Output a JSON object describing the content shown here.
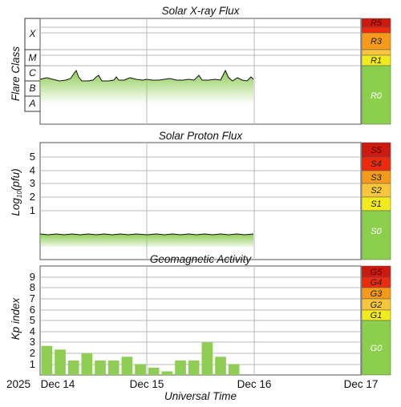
{
  "x_start_year": "2025",
  "x_axis_label": "Universal Time",
  "x_ticks": [
    "Dec 14",
    "Dec 15",
    "Dec 16",
    "Dec 17"
  ],
  "colors": {
    "green_bar": "#8fcd55",
    "green_light": "#d8efbf",
    "grid": "#b8b8b8",
    "scale_green": "#8ccf4d",
    "scale_yellow": "#f2ec1f",
    "scale_orange1": "#f8c63a",
    "scale_orange2": "#f59a1a",
    "scale_red1": "#ee2a0e",
    "scale_red2": "#cc1a10"
  },
  "xray": {
    "title": "Solar X-ray Flux",
    "ylabel": "Flare Class",
    "classes": [
      "X",
      "M",
      "C",
      "B",
      "A"
    ],
    "scale": [
      "R5",
      "R3",
      "R1",
      "R0"
    ]
  },
  "proton": {
    "title": "Solar Proton Flux",
    "ylabel": "Log10(pfu)",
    "ylabel_main": "Log",
    "ylabel_sub": "10",
    "ylabel_tail": "(pfu)",
    "yticks": [
      "5",
      "4",
      "3",
      "2",
      "1"
    ],
    "scale": [
      "S5",
      "S4",
      "S3",
      "S2",
      "S1",
      "S0"
    ]
  },
  "geomag": {
    "title": "Geomagnetic Activity",
    "ylabel": "Kp index",
    "yticks": [
      "9",
      "8",
      "7",
      "6",
      "5",
      "4",
      "3",
      "2",
      "1"
    ],
    "scale": [
      "G5",
      "G4",
      "G3",
      "G2",
      "G1",
      "G0"
    ]
  },
  "chart_data": [
    {
      "type": "area",
      "title": "Solar X-ray Flux",
      "xlabel": "Universal Time",
      "ylabel": "Flare Class",
      "y_scale": "log",
      "y_units": "W/m^2",
      "xlim": [
        "2025-12-14 00:00",
        "2025-12-17 00:00"
      ],
      "ylim": [
        1e-09,
        0.001
      ],
      "x": [
        "2025-12-14 00:00",
        "2025-12-14 03:00",
        "2025-12-14 06:00",
        "2025-12-14 09:00",
        "2025-12-14 12:00",
        "2025-12-14 15:00",
        "2025-12-14 18:00",
        "2025-12-14 21:00",
        "2025-12-15 00:00",
        "2025-12-15 03:00",
        "2025-12-15 06:00",
        "2025-12-15 09:00",
        "2025-12-15 12:00",
        "2025-12-15 15:00",
        "2025-12-15 18:00",
        "2025-12-15 21:00",
        "2025-12-16 00:00"
      ],
      "series": [
        {
          "values": [
            4e-07,
            3e-07,
            3.5e-07,
            1.1e-06,
            3.5e-07,
            7e-07,
            3e-07,
            5e-07,
            4e-07,
            4.5e-07,
            3.5e-07,
            4e-07,
            5e-07,
            4e-07,
            1.1e-06,
            4e-07,
            5e-07
          ]
        }
      ],
      "scale_labels": [
        "R5",
        "R3",
        "R1",
        "R0"
      ]
    },
    {
      "type": "area",
      "title": "Solar Proton Flux",
      "xlabel": "Universal Time",
      "ylabel": "Log10(pfu)",
      "xlim": [
        "2025-12-14 00:00",
        "2025-12-17 00:00"
      ],
      "ylim": [
        -2,
        6
      ],
      "yticks": [
        1,
        2,
        3,
        4,
        5
      ],
      "x": [
        "2025-12-14 00:00",
        "2025-12-14 06:00",
        "2025-12-14 12:00",
        "2025-12-14 18:00",
        "2025-12-15 00:00",
        "2025-12-15 06:00",
        "2025-12-15 12:00",
        "2025-12-15 18:00",
        "2025-12-16 00:00"
      ],
      "series": [
        {
          "values": [
            -0.8,
            -0.85,
            -0.8,
            -0.85,
            -0.8,
            -0.82,
            -0.8,
            -0.82,
            -0.8
          ]
        }
      ],
      "scale_labels": [
        "S5",
        "S4",
        "S3",
        "S2",
        "S1",
        "S0"
      ]
    },
    {
      "type": "bar",
      "title": "Geomagnetic Activity",
      "xlabel": "Universal Time",
      "ylabel": "Kp index",
      "xlim": [
        "2025-12-14 00:00",
        "2025-12-17 00:00"
      ],
      "ylim": [
        0,
        10
      ],
      "yticks": [
        1,
        2,
        3,
        4,
        5,
        6,
        7,
        8,
        9
      ],
      "categories": [
        "2025-12-14 00:00",
        "2025-12-14 03:00",
        "2025-12-14 06:00",
        "2025-12-14 09:00",
        "2025-12-14 12:00",
        "2025-12-14 15:00",
        "2025-12-14 18:00",
        "2025-12-14 21:00",
        "2025-12-15 00:00",
        "2025-12-15 03:00",
        "2025-12-15 06:00",
        "2025-12-15 09:00",
        "2025-12-15 12:00",
        "2025-12-15 15:00",
        "2025-12-15 18:00",
        "2025-12-15 21:00"
      ],
      "values": [
        2.67,
        2.33,
        1.33,
        2.0,
        1.33,
        1.33,
        1.67,
        1.0,
        0.67,
        0.33,
        1.33,
        1.33,
        3.0,
        1.67,
        1.0,
        null
      ],
      "scale_labels": [
        "G5",
        "G4",
        "G3",
        "G2",
        "G1",
        "G0"
      ]
    }
  ]
}
